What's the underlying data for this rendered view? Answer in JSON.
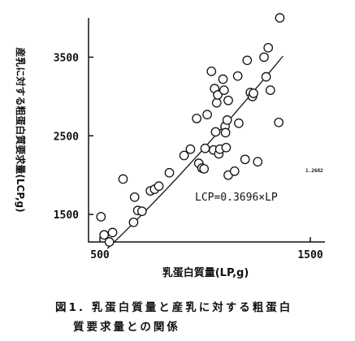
{
  "chart_data": {
    "type": "scatter",
    "title": "",
    "xlabel": "乳蛋白質量(LP,g)",
    "ylabel": "産乳に対する粗蛋白質要求量(LCP,g)",
    "xlim": [
      500,
      1500
    ],
    "ylim": [
      1150,
      4000
    ],
    "xticks": [
      500,
      1500
    ],
    "yticks": [
      1500,
      2500,
      3500
    ],
    "grid": false,
    "equation": {
      "text": "LCP=0.3696×LP",
      "exponent_label": "1.2682",
      "coefficient": 0.3696,
      "exponent": 1.2682
    },
    "points": [
      {
        "x": 505,
        "y": 1470
      },
      {
        "x": 520,
        "y": 1240
      },
      {
        "x": 545,
        "y": 1150
      },
      {
        "x": 560,
        "y": 1270
      },
      {
        "x": 610,
        "y": 1950
      },
      {
        "x": 660,
        "y": 1400
      },
      {
        "x": 665,
        "y": 1720
      },
      {
        "x": 680,
        "y": 1550
      },
      {
        "x": 700,
        "y": 1540
      },
      {
        "x": 740,
        "y": 1800
      },
      {
        "x": 760,
        "y": 1820
      },
      {
        "x": 780,
        "y": 1860
      },
      {
        "x": 830,
        "y": 2030
      },
      {
        "x": 900,
        "y": 2250
      },
      {
        "x": 930,
        "y": 2330
      },
      {
        "x": 960,
        "y": 2720
      },
      {
        "x": 970,
        "y": 2150
      },
      {
        "x": 985,
        "y": 2090
      },
      {
        "x": 995,
        "y": 2080
      },
      {
        "x": 1000,
        "y": 2340
      },
      {
        "x": 1010,
        "y": 2770
      },
      {
        "x": 1030,
        "y": 3320
      },
      {
        "x": 1040,
        "y": 2320
      },
      {
        "x": 1045,
        "y": 3100
      },
      {
        "x": 1050,
        "y": 2550
      },
      {
        "x": 1055,
        "y": 2920
      },
      {
        "x": 1060,
        "y": 3020
      },
      {
        "x": 1065,
        "y": 2270
      },
      {
        "x": 1070,
        "y": 2330
      },
      {
        "x": 1085,
        "y": 3220
      },
      {
        "x": 1090,
        "y": 3080
      },
      {
        "x": 1095,
        "y": 2620
      },
      {
        "x": 1097,
        "y": 2540
      },
      {
        "x": 1100,
        "y": 2350
      },
      {
        "x": 1105,
        "y": 2700
      },
      {
        "x": 1110,
        "y": 2950
      },
      {
        "x": 1110,
        "y": 2000
      },
      {
        "x": 1140,
        "y": 2050
      },
      {
        "x": 1155,
        "y": 3260
      },
      {
        "x": 1160,
        "y": 2660
      },
      {
        "x": 1190,
        "y": 2200
      },
      {
        "x": 1200,
        "y": 3460
      },
      {
        "x": 1215,
        "y": 3050
      },
      {
        "x": 1225,
        "y": 3000
      },
      {
        "x": 1230,
        "y": 3040
      },
      {
        "x": 1250,
        "y": 2170
      },
      {
        "x": 1280,
        "y": 3500
      },
      {
        "x": 1290,
        "y": 3250
      },
      {
        "x": 1300,
        "y": 3620
      },
      {
        "x": 1310,
        "y": 3080
      },
      {
        "x": 1350,
        "y": 2670
      },
      {
        "x": 1355,
        "y": 4000
      }
    ],
    "curve_x_range": [
      535,
      1370
    ]
  },
  "caption": {
    "line1": "図1. 乳蛋白質量と産乳に対する粗蛋白",
    "line2": "質要求量との関係"
  }
}
